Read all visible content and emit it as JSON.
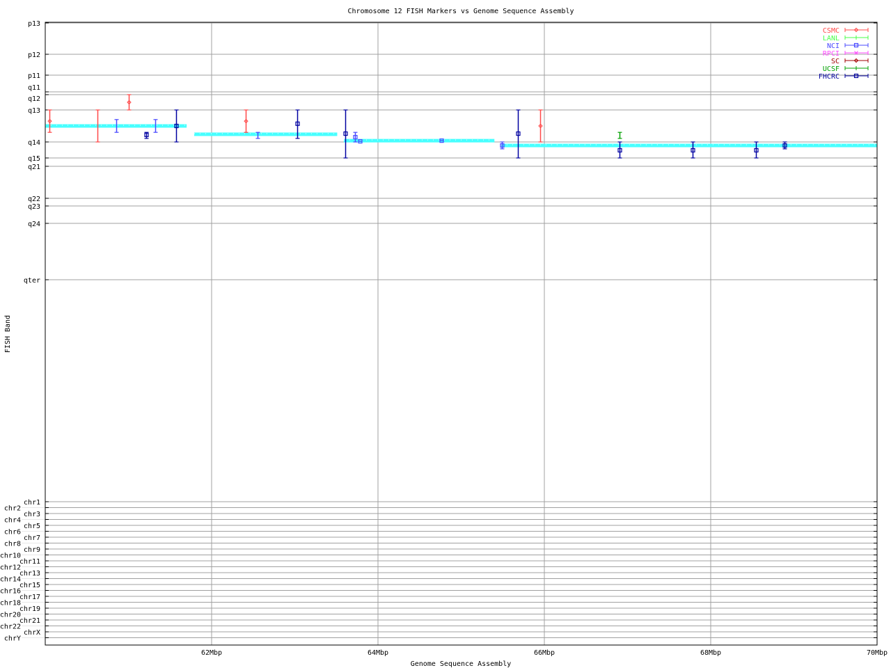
{
  "chart_data": {
    "type": "scatter",
    "title": "Chromosome 12 FISH Markers vs Genome Sequence Assembly",
    "xlabel": "Genome Sequence Assembly",
    "ylabel": "FISH Band",
    "xlim": [
      60,
      70
    ],
    "x_ticks": [
      {
        "v": 62,
        "label": "62Mbp"
      },
      {
        "v": 64,
        "label": "64Mbp"
      },
      {
        "v": 66,
        "label": "66Mbp"
      },
      {
        "v": 68,
        "label": "68Mbp"
      },
      {
        "v": 70,
        "label": "70Mbp"
      }
    ],
    "y_ticks": [
      "p13",
      "p12",
      "p11",
      "q11",
      "q12",
      "q13",
      "q14",
      "q15",
      "q21",
      "q22",
      "q23",
      "q24",
      "qter",
      "chr1",
      "chr2",
      "chr3",
      "chr4",
      "chr5",
      "chr6",
      "chr7",
      "chr8",
      "chr9",
      "chr10",
      "chr11",
      "chr12",
      "chr13",
      "chr14",
      "chr15",
      "chr16",
      "chr17",
      "chr18",
      "chr19",
      "chr20",
      "chr21",
      "chr22",
      "chrX",
      "chrY"
    ],
    "grid": true,
    "legend_position": "top-right",
    "series": [
      {
        "name": "CSMC",
        "color": "#ff4848",
        "marker": "diamond",
        "points": [
          {
            "x": 60.05,
            "y": [
              "q13",
              0.35
            ],
            "lo": [
              "q13",
              0
            ],
            "hi": [
              "q13",
              0.7
            ]
          },
          {
            "x": 60.63,
            "y": [
              "q13",
              0.5
            ],
            "lo": [
              "q13",
              0
            ],
            "hi": [
              "q14",
              0
            ],
            "nomarker": true
          },
          {
            "x": 61.0,
            "y": [
              "q12",
              0.5
            ],
            "lo": [
              "q12",
              0
            ],
            "hi": [
              "q13",
              0
            ]
          },
          {
            "x": 62.41,
            "y": [
              "q13",
              0.35
            ],
            "lo": [
              "q13",
              0
            ],
            "hi": [
              "q13",
              0.7
            ]
          },
          {
            "x": 65.95,
            "y": [
              "q13",
              0.5
            ],
            "lo": [
              "q13",
              0
            ],
            "hi": [
              "q14",
              0
            ]
          }
        ]
      },
      {
        "name": "LANL",
        "color": "#48ff48",
        "marker": "tick",
        "points": []
      },
      {
        "name": "NCI",
        "color": "#4848ff",
        "marker": "square",
        "points": [
          {
            "x": 60.85,
            "y": [
              "q13",
              0.5
            ],
            "lo": [
              "q13",
              0.3
            ],
            "hi": [
              "q13",
              0.7
            ],
            "nomarker": true
          },
          {
            "x": 61.32,
            "y": [
              "q13",
              0.5
            ],
            "lo": [
              "q13",
              0.3
            ],
            "hi": [
              "q13",
              0.7
            ],
            "nomarker": true
          },
          {
            "x": 62.55,
            "y": [
              "q13",
              0.78
            ],
            "lo": [
              "q13",
              0.7
            ],
            "hi": [
              "q13",
              0.89
            ],
            "nomarker": true
          },
          {
            "x": 63.72,
            "y": [
              "q13",
              0.85
            ],
            "lo": [
              "q13",
              0.7
            ],
            "hi": [
              "q14",
              0
            ]
          },
          {
            "x": 63.78,
            "y": [
              "q13",
              0.98
            ],
            "lo": [
              "q13",
              0.98
            ],
            "hi": [
              "q13",
              0.98
            ]
          },
          {
            "x": 64.76,
            "y": [
              "q13",
              0.96
            ],
            "lo": [
              "q13",
              0.96
            ],
            "hi": [
              "q13",
              0.96
            ]
          },
          {
            "x": 65.49,
            "y": [
              "q14",
              0.22
            ],
            "lo": [
              "q14",
              0
            ],
            "hi": [
              "q14",
              0.43
            ]
          }
        ]
      },
      {
        "name": "RPCI",
        "color": "#ff48ff",
        "marker": "cross",
        "points": []
      },
      {
        "name": "SC",
        "color": "#a00000",
        "marker": "diamond",
        "points": []
      },
      {
        "name": "UCSF",
        "color": "#00a000",
        "marker": "tick",
        "points": [
          {
            "x": 66.9,
            "y": [
              "q13",
              0.78
            ],
            "lo": [
              "q13",
              0.7
            ],
            "hi": [
              "q13",
              0.89
            ],
            "nomarker": true
          }
        ]
      },
      {
        "name": "FHCRC",
        "color": "#0000a0",
        "marker": "square",
        "points": [
          {
            "x": 61.21,
            "y": [
              "q13",
              0.78
            ],
            "lo": [
              "q13",
              0.7
            ],
            "hi": [
              "q13",
              0.89
            ]
          },
          {
            "x": 61.57,
            "y": [
              "q13",
              0.5
            ],
            "lo": [
              "q13",
              0
            ],
            "hi": [
              "q14",
              0
            ]
          },
          {
            "x": 63.03,
            "y": [
              "q13",
              0.43
            ],
            "lo": [
              "q13",
              0
            ],
            "hi": [
              "q13",
              0.89
            ]
          },
          {
            "x": 63.61,
            "y": [
              "q13",
              0.74
            ],
            "lo": [
              "q13",
              0
            ],
            "hi": [
              "q15",
              0
            ]
          },
          {
            "x": 65.68,
            "y": [
              "q13",
              0.74
            ],
            "lo": [
              "q13",
              0
            ],
            "hi": [
              "q15",
              0
            ]
          },
          {
            "x": 66.9,
            "y": [
              "q14",
              0.52
            ],
            "lo": [
              "q14",
              0
            ],
            "hi": [
              "q15",
              0
            ]
          },
          {
            "x": 67.78,
            "y": [
              "q14",
              0.52
            ],
            "lo": [
              "q14",
              0
            ],
            "hi": [
              "q15",
              0
            ]
          },
          {
            "x": 68.54,
            "y": [
              "q14",
              0.52
            ],
            "lo": [
              "q14",
              0
            ],
            "hi": [
              "q15",
              0
            ]
          },
          {
            "x": 68.89,
            "y": [
              "q14",
              0.22
            ],
            "lo": [
              "q14",
              0
            ],
            "hi": [
              "q14",
              0.43
            ]
          }
        ]
      }
    ],
    "assembly_segments": {
      "color": "#48ffff",
      "segments": [
        {
          "x0": 60.0,
          "x1": 61.7,
          "y": [
            "q13",
            0.5
          ]
        },
        {
          "x0": 61.79,
          "x1": 63.51,
          "y": [
            "q13",
            0.76
          ]
        },
        {
          "x0": 63.59,
          "x1": 65.4,
          "y": [
            "q13",
            0.96
          ]
        },
        {
          "x0": 65.48,
          "x1": 70.0,
          "y": [
            "q14",
            0.22
          ]
        }
      ]
    }
  }
}
